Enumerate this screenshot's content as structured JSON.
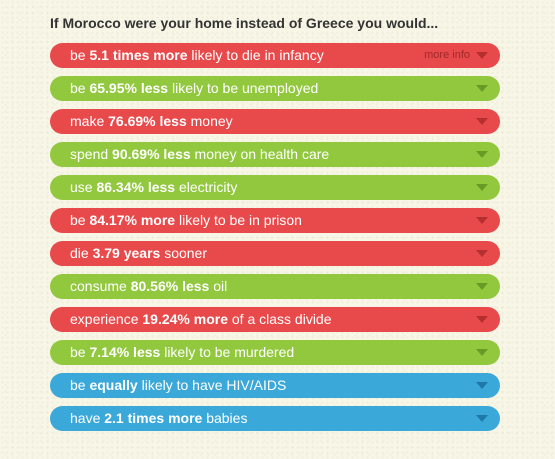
{
  "heading": "If Morocco were your home instead of Greece you would...",
  "more_info_label": "more info",
  "items": [
    {
      "color": "red",
      "pre": "be ",
      "bold": "5.1 times more",
      "post": " likely to die in infancy"
    },
    {
      "color": "green",
      "pre": "be ",
      "bold": "65.95% less",
      "post": " likely to be unemployed"
    },
    {
      "color": "red",
      "pre": "make ",
      "bold": "76.69% less",
      "post": " money"
    },
    {
      "color": "green",
      "pre": "spend ",
      "bold": "90.69% less",
      "post": " money on health care"
    },
    {
      "color": "green",
      "pre": "use ",
      "bold": "86.34% less",
      "post": " electricity"
    },
    {
      "color": "red",
      "pre": "be ",
      "bold": "84.17% more",
      "post": " likely to be in prison"
    },
    {
      "color": "red",
      "pre": "die ",
      "bold": "3.79 years",
      "post": " sooner"
    },
    {
      "color": "green",
      "pre": "consume ",
      "bold": "80.56% less",
      "post": " oil"
    },
    {
      "color": "red",
      "pre": "experience ",
      "bold": "19.24% more",
      "post": " of a class divide"
    },
    {
      "color": "green",
      "pre": "be ",
      "bold": "7.14% less",
      "post": " likely to be murdered"
    },
    {
      "color": "blue",
      "pre": "be ",
      "bold": "equally",
      "post": " likely to have HIV/AIDS"
    },
    {
      "color": "blue",
      "pre": "have ",
      "bold": "2.1 times more",
      "post": " babies"
    }
  ],
  "colors": {
    "red": "#e84a4b",
    "green": "#92c83e",
    "blue": "#3aa8d8",
    "background": "#f8f6e6"
  },
  "icons": {
    "expand": "chevron-down-icon"
  }
}
